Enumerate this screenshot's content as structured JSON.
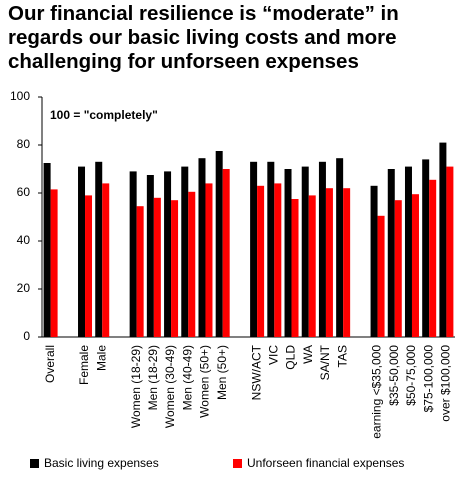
{
  "chart_data": {
    "type": "bar",
    "title": "Our financial resilience is “moderate” in regards our basic living costs and more challenging for unforseen expenses",
    "annotation": "100 = \"completely\"",
    "categories": [
      "Overall",
      null,
      "Female",
      "Male",
      null,
      "Women (18-29)",
      "Men (18-29)",
      "Women (30-49)",
      "Men (40-49)",
      "Women (50+)",
      "Men (50+)",
      null,
      "NSW/ACT",
      "VIC",
      "QLD",
      "WA",
      "SA/NT",
      "TAS",
      null,
      "earning <$35,000",
      "$35-50,000",
      "$50-75,000",
      "$75-100,000",
      "over $100,000"
    ],
    "series": [
      {
        "name": "Basic living expenses",
        "color": "#000000",
        "values": [
          72.5,
          null,
          71,
          73,
          null,
          69,
          67.5,
          69,
          71,
          74.5,
          77.5,
          null,
          73,
          73,
          70,
          71,
          73,
          74.5,
          null,
          63,
          70,
          71,
          74,
          81
        ]
      },
      {
        "name": "Unforseen financial expenses",
        "color": "#ff0000",
        "values": [
          61.5,
          null,
          59,
          64,
          null,
          54.5,
          58,
          57,
          60.5,
          64,
          70,
          null,
          63,
          64,
          57.5,
          59,
          62,
          62,
          null,
          50.5,
          57,
          59.5,
          65.5,
          71
        ]
      }
    ],
    "ylim": [
      0,
      100
    ],
    "yticks": [
      0,
      20,
      40,
      60,
      80,
      100
    ],
    "grid": false,
    "legend": "bottom"
  }
}
